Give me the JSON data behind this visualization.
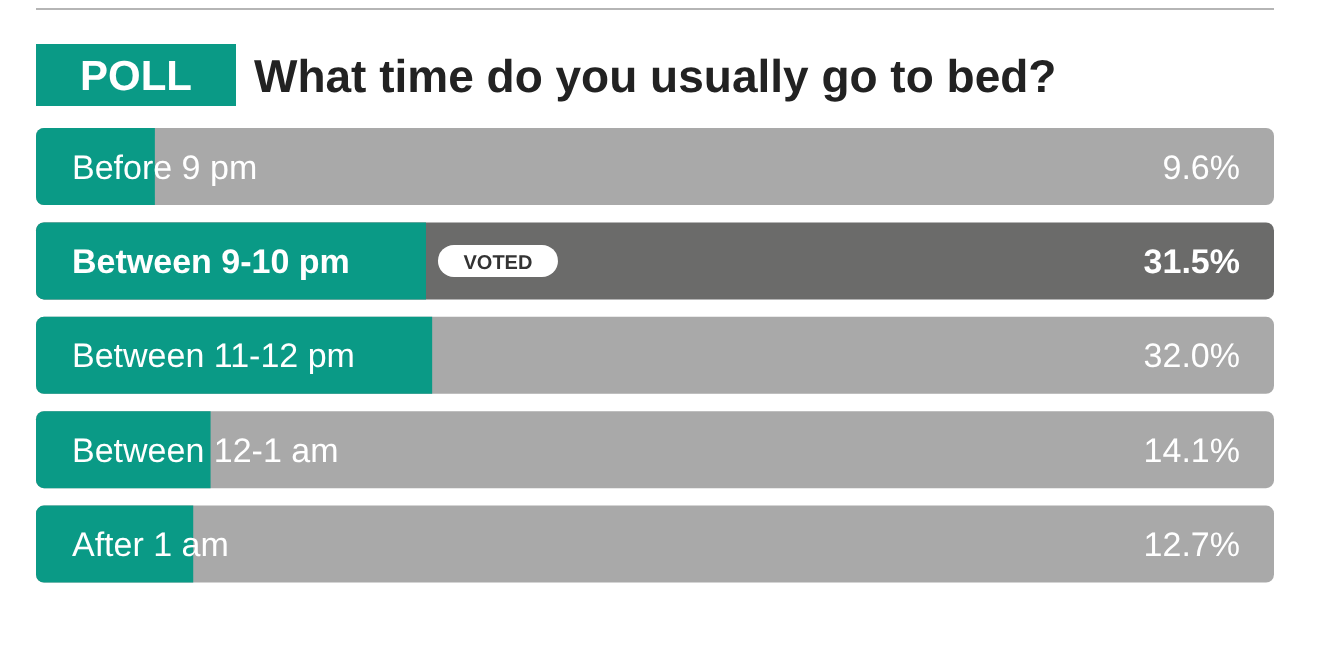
{
  "chart_data": {
    "type": "bar",
    "orientation": "horizontal",
    "title": "What time do you usually go to bed?",
    "categories": [
      "Before 9 pm",
      "Between 9-10 pm",
      "Between 11-12 pm",
      "Between 12-1 am",
      "After 1 am"
    ],
    "values": [
      9.6,
      31.5,
      32.0,
      14.1,
      12.7
    ],
    "color": "#0a9a86",
    "xlim": [
      0,
      100
    ],
    "data_labels": true,
    "value_labels": [
      "9.6%",
      "31.5%",
      "32.0%",
      "14.1%",
      "12.7%"
    ],
    "annotations": [
      "POLL",
      {
        "text": "VOTED",
        "x": 31.5,
        "y": "Between 9-10 pm"
      }
    ]
  }
}
